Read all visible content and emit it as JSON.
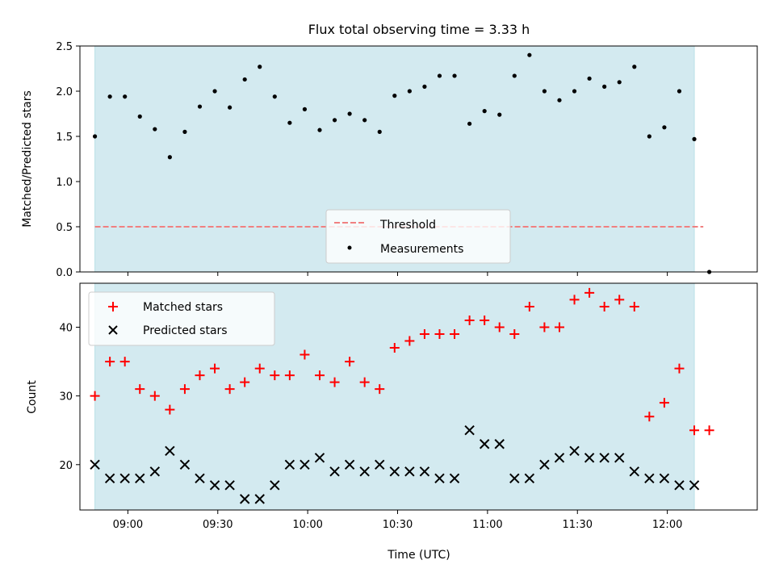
{
  "figure": {
    "title": "Flux total observing time = 3.33 h"
  },
  "colors": {
    "span": "#d3eaf0",
    "span_edge": "#b9e0e6",
    "threshold": "#f08080",
    "matched": "#ff0000",
    "predicted": "#000000",
    "measurements": "#000000"
  },
  "chart_data": [
    {
      "type": "scatter",
      "title": "Flux total observing time = 3.33 h",
      "ylabel": "Matched/Predicted stars",
      "xlabel": "",
      "xlim": [
        "08:44",
        "12:30"
      ],
      "ylim": [
        0,
        2.5
      ],
      "yticks": [
        0.0,
        0.5,
        1.0,
        1.5,
        2.0,
        2.5
      ],
      "ytick_labels": [
        "0.0",
        "0.5",
        "1.0",
        "1.5",
        "2.0",
        "2.5"
      ],
      "xticks": [
        "09:00",
        "09:30",
        "10:00",
        "10:30",
        "11:00",
        "11:30",
        "12:00"
      ],
      "shaded_span": [
        "08:49",
        "12:09"
      ],
      "threshold": {
        "name": "Threshold",
        "y": 0.5,
        "style": "dashed"
      },
      "legend_position": "lower center",
      "legend": [
        "Threshold",
        "Measurements"
      ],
      "series": [
        {
          "name": "Measurements",
          "x": [
            "08:49",
            "08:54",
            "08:59",
            "09:04",
            "09:09",
            "09:14",
            "09:19",
            "09:24",
            "09:29",
            "09:34",
            "09:39",
            "09:44",
            "09:49",
            "09:54",
            "09:59",
            "10:04",
            "10:09",
            "10:14",
            "10:19",
            "10:24",
            "10:29",
            "10:34",
            "10:39",
            "10:44",
            "10:49",
            "10:54",
            "10:59",
            "11:04",
            "11:09",
            "11:14",
            "11:19",
            "11:24",
            "11:29",
            "11:34",
            "11:39",
            "11:44",
            "11:49",
            "11:54",
            "11:59",
            "12:04",
            "12:09",
            "12:14"
          ],
          "values": [
            1.5,
            1.94,
            1.94,
            1.72,
            1.58,
            1.27,
            1.55,
            1.83,
            2.0,
            1.82,
            2.13,
            2.27,
            1.94,
            1.65,
            1.8,
            1.57,
            1.68,
            1.75,
            1.68,
            1.55,
            1.95,
            2.0,
            2.05,
            2.17,
            2.17,
            1.64,
            1.78,
            1.74,
            2.17,
            2.4,
            2.0,
            1.9,
            2.0,
            2.14,
            2.05,
            2.1,
            2.27,
            1.5,
            1.6,
            2.0,
            1.47,
            0.0
          ]
        }
      ]
    },
    {
      "type": "scatter",
      "title": "",
      "ylabel": "Count",
      "xlabel": "Time (UTC)",
      "xlim": [
        "08:44",
        "12:30"
      ],
      "ylim": [
        13.4,
        46.4
      ],
      "yticks": [
        20,
        30,
        40
      ],
      "ytick_labels": [
        "20",
        "30",
        "40"
      ],
      "xticks": [
        "09:00",
        "09:30",
        "10:00",
        "10:30",
        "11:00",
        "11:30",
        "12:00"
      ],
      "xtick_labels": [
        "09:00",
        "09:30",
        "10:00",
        "10:30",
        "11:00",
        "11:30",
        "12:00"
      ],
      "shaded_span": [
        "08:49",
        "12:09"
      ],
      "legend_position": "upper left",
      "legend": [
        "Matched stars",
        "Predicted stars"
      ],
      "x": [
        "08:49",
        "08:54",
        "08:59",
        "09:04",
        "09:09",
        "09:14",
        "09:19",
        "09:24",
        "09:29",
        "09:34",
        "09:39",
        "09:44",
        "09:49",
        "09:54",
        "09:59",
        "10:04",
        "10:09",
        "10:14",
        "10:19",
        "10:24",
        "10:29",
        "10:34",
        "10:39",
        "10:44",
        "10:49",
        "10:54",
        "10:59",
        "11:04",
        "11:09",
        "11:14",
        "11:19",
        "11:24",
        "11:29",
        "11:34",
        "11:39",
        "11:44",
        "11:49",
        "11:54",
        "11:59",
        "12:04",
        "12:09",
        "12:14"
      ],
      "series": [
        {
          "name": "Matched stars",
          "marker": "+",
          "values": [
            30,
            35,
            35,
            31,
            30,
            28,
            31,
            33,
            34,
            31,
            32,
            34,
            33,
            33,
            36,
            33,
            32,
            35,
            32,
            31,
            37,
            38,
            39,
            39,
            39,
            41,
            41,
            40,
            39,
            43,
            40,
            40,
            44,
            45,
            43,
            44,
            43,
            27,
            29,
            34,
            25,
            25
          ]
        },
        {
          "name": "Predicted stars",
          "marker": "x",
          "values": [
            20,
            18,
            18,
            18,
            19,
            22,
            20,
            18,
            17,
            17,
            15,
            15,
            17,
            20,
            20,
            21,
            19,
            20,
            19,
            20,
            19,
            19,
            19,
            18,
            18,
            25,
            23,
            23,
            18,
            18,
            20,
            21,
            22,
            21,
            21,
            21,
            19,
            18,
            18,
            17,
            17,
            null
          ]
        }
      ]
    }
  ]
}
